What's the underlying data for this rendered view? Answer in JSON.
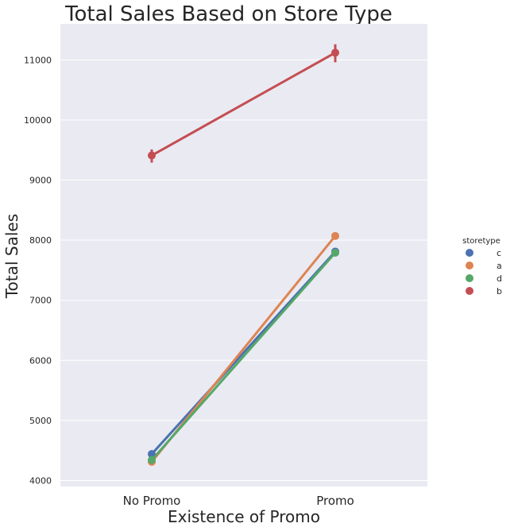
{
  "chart_data": {
    "type": "line",
    "title": "Total Sales Based on Store Type",
    "xlabel": "Existence of Promo",
    "ylabel": "Total Sales",
    "categories": [
      "No Promo",
      "Promo"
    ],
    "ylim": [
      3900,
      11600
    ],
    "yticks": [
      4000,
      5000,
      6000,
      7000,
      8000,
      9000,
      10000,
      11000
    ],
    "grid": true,
    "legend": {
      "title": "storetype",
      "placement": "right"
    },
    "series": [
      {
        "name": "c",
        "color": "#4c72b0",
        "values": [
          4440,
          7810
        ],
        "ci": [
          [
            4420,
            4460
          ],
          [
            7780,
            7840
          ]
        ]
      },
      {
        "name": "a",
        "color": "#dd8452",
        "values": [
          4310,
          8070
        ],
        "ci": [
          [
            4295,
            4325
          ],
          [
            8050,
            8090
          ]
        ]
      },
      {
        "name": "d",
        "color": "#55a868",
        "values": [
          4340,
          7790
        ],
        "ci": [
          [
            4320,
            4360
          ],
          [
            7770,
            7810
          ]
        ]
      },
      {
        "name": "b",
        "color": "#c44e52",
        "values": [
          9410,
          11120
        ],
        "ci": [
          [
            9290,
            9510
          ],
          [
            10960,
            11260
          ]
        ]
      }
    ]
  }
}
